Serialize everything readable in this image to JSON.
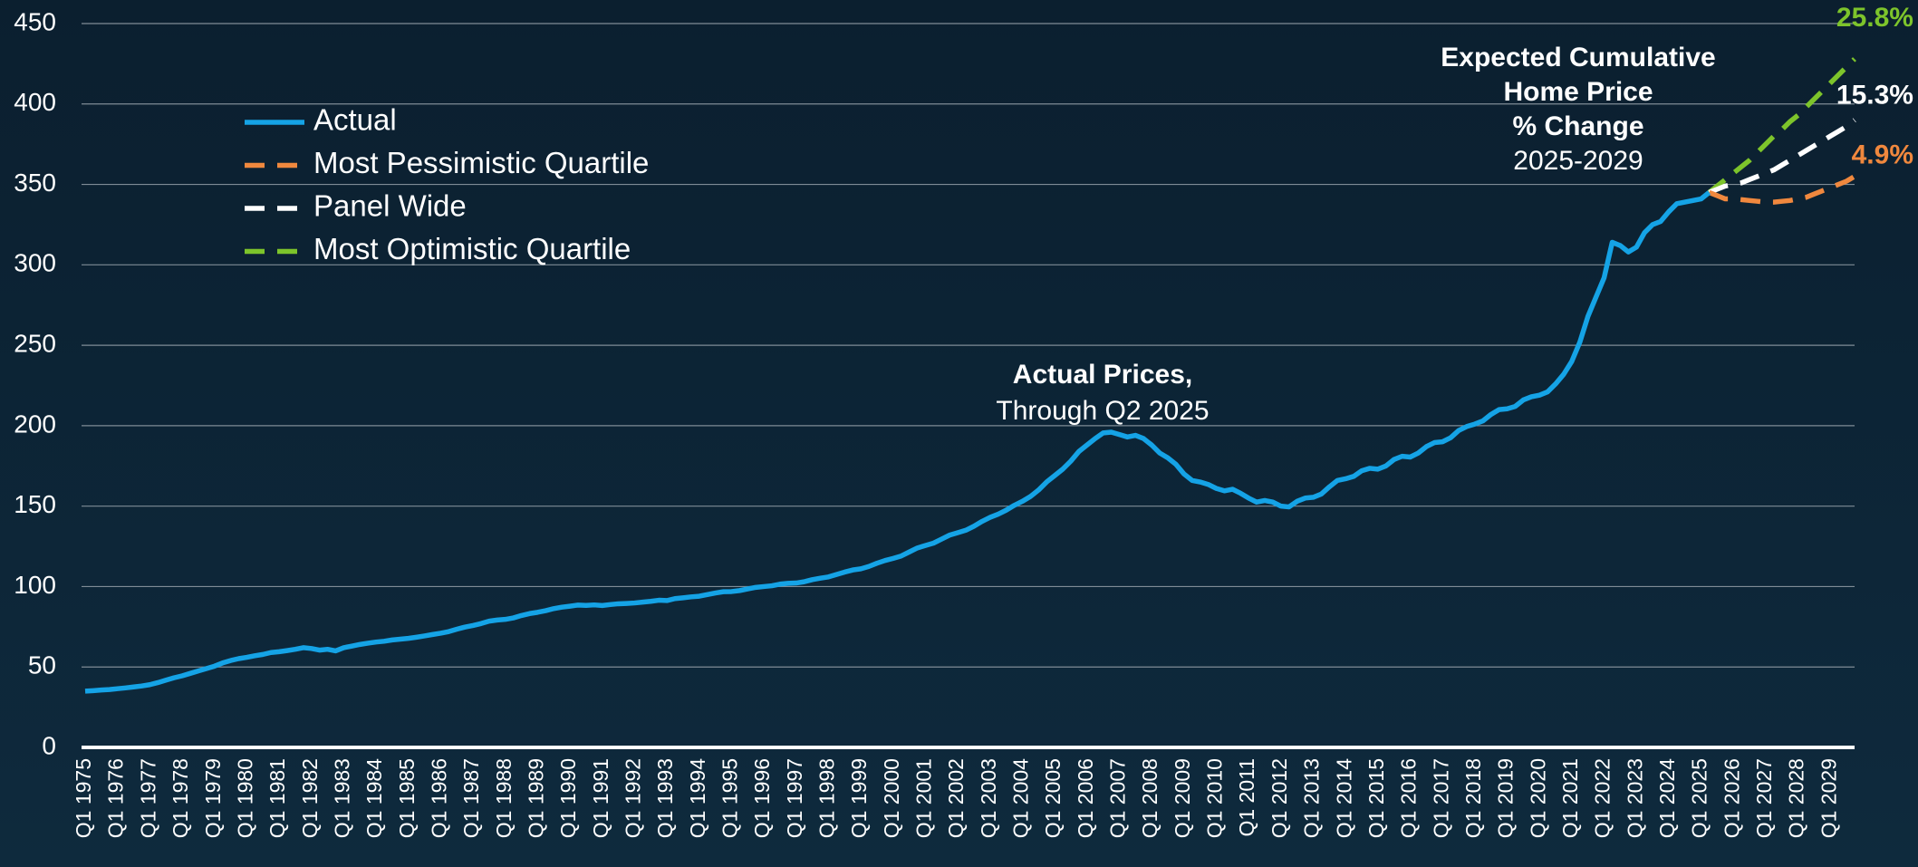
{
  "chart_data": {
    "type": "line",
    "ylim": [
      0,
      450
    ],
    "yticks": [
      0,
      50,
      100,
      150,
      200,
      250,
      300,
      350,
      400,
      450
    ],
    "grid": true,
    "legend": "upper left",
    "annotations": [
      "Expected Cumulative",
      "Home Price",
      "% Change",
      "2025-2029",
      "Actual Prices,",
      "Through Q2 2025"
    ],
    "categories": [
      "Q1 1975",
      null,
      null,
      null,
      "Q1 1976",
      null,
      null,
      null,
      "Q1 1977",
      null,
      null,
      null,
      "Q1 1978",
      null,
      null,
      null,
      "Q1 1979",
      null,
      null,
      null,
      "Q1 1980",
      null,
      null,
      null,
      "Q1 1981",
      null,
      null,
      null,
      "Q1 1982",
      null,
      null,
      null,
      "Q1 1983",
      null,
      null,
      null,
      "Q1 1984",
      null,
      null,
      null,
      "Q1 1985",
      null,
      null,
      null,
      "Q1 1986",
      null,
      null,
      null,
      "Q1 1987",
      null,
      null,
      null,
      "Q1 1988",
      null,
      null,
      null,
      "Q1 1989",
      null,
      null,
      null,
      "Q1 1990",
      null,
      null,
      null,
      "Q1 1991",
      null,
      null,
      null,
      "Q1 1992",
      null,
      null,
      null,
      "Q1 1993",
      null,
      null,
      null,
      "Q1 1994",
      null,
      null,
      null,
      "Q1 1995",
      null,
      null,
      null,
      "Q1 1996",
      null,
      null,
      null,
      "Q1 1997",
      null,
      null,
      null,
      "Q1 1998",
      null,
      null,
      null,
      "Q1 1999",
      null,
      null,
      null,
      "Q1 2000",
      null,
      null,
      null,
      "Q1 2001",
      null,
      null,
      null,
      "Q1 2002",
      null,
      null,
      null,
      "Q1 2003",
      null,
      null,
      null,
      "Q1 2004",
      null,
      null,
      null,
      "Q1 2005",
      null,
      null,
      null,
      "Q1 2006",
      null,
      null,
      null,
      "Q1 2007",
      null,
      null,
      null,
      "Q1 2008",
      null,
      null,
      null,
      "Q1 2009",
      null,
      null,
      null,
      "Q1 2010",
      null,
      null,
      null,
      "Q1 2011",
      null,
      null,
      null,
      "Q1 2012",
      null,
      null,
      null,
      "Q1 2013",
      null,
      null,
      null,
      "Q1 2014",
      null,
      null,
      null,
      "Q1 2015",
      null,
      null,
      null,
      "Q1 2016",
      null,
      null,
      null,
      "Q1 2017",
      null,
      null,
      null,
      "Q1 2018",
      null,
      null,
      null,
      "Q1 2019",
      null,
      null,
      null,
      "Q1 2020",
      null,
      null,
      null,
      "Q1 2021",
      null,
      null,
      null,
      "Q1 2022",
      null,
      null,
      null,
      "Q1 2023",
      null,
      null,
      null,
      "Q1 2024",
      null,
      null,
      null,
      "Q1 2025",
      null,
      null,
      null,
      "Q1 2026",
      null,
      null,
      null,
      "Q1 2027",
      null,
      null,
      null,
      "Q1 2028",
      null,
      null,
      null,
      "Q1 2029",
      null,
      null,
      null
    ],
    "series": [
      {
        "name": "Actual",
        "color": "#15a3e6",
        "dashed": false,
        "values": [
          35,
          35.3,
          35.7,
          36,
          36.5,
          37,
          37.6,
          38.2,
          39,
          40.3,
          41.8,
          43.3,
          44.5,
          46,
          47.5,
          49,
          50.5,
          52.5,
          54,
          55.2,
          56,
          57,
          57.8,
          59,
          59.5,
          60.2,
          61,
          62,
          61.5,
          60.5,
          61,
          60,
          62,
          63,
          64,
          64.8,
          65.5,
          66,
          66.8,
          67.3,
          67.8,
          68.5,
          69.3,
          70.2,
          71,
          72,
          73.5,
          74.8,
          75.8,
          77,
          78.5,
          79.2,
          79.6,
          80.5,
          82,
          83.2,
          84,
          85,
          86.3,
          87.2,
          87.8,
          88.5,
          88.3,
          88.6,
          88.2,
          88.8,
          89.3,
          89.5,
          89.8,
          90.3,
          90.8,
          91.5,
          91.3,
          92.5,
          93,
          93.6,
          94,
          95,
          96,
          96.8,
          96.9,
          97.5,
          98.5,
          99.5,
          100,
          100.5,
          101.5,
          102,
          102.2,
          103,
          104.3,
          105.2,
          106,
          107.5,
          109,
          110.3,
          111,
          112.5,
          114.5,
          116.2,
          117.5,
          119,
          121.5,
          124,
          125.5,
          127,
          129.5,
          132,
          133.5,
          135,
          137.5,
          140.5,
          143,
          145,
          147.5,
          150.5,
          153,
          156,
          160,
          165,
          169,
          173,
          178,
          184,
          188,
          192,
          195.5,
          196,
          194.5,
          193,
          194,
          192,
          188,
          183,
          180,
          176,
          170,
          166,
          165,
          163.5,
          161,
          159.5,
          160.5,
          158,
          155,
          152.5,
          153.5,
          152.5,
          150,
          149.5,
          153,
          155,
          155.5,
          157.5,
          162,
          166,
          167,
          168.5,
          172,
          173.5,
          173,
          175,
          179,
          181,
          180.5,
          183,
          187,
          189.5,
          190,
          192.5,
          197,
          199.5,
          201,
          203,
          207,
          210,
          210.5,
          212,
          216,
          218,
          219,
          221,
          226,
          232,
          240,
          252,
          268,
          280,
          292,
          314,
          312,
          308,
          311,
          320,
          325,
          327,
          333,
          338,
          339,
          340,
          341,
          345,
          null,
          null,
          null,
          null,
          null,
          null,
          null,
          null,
          null,
          null,
          null,
          null,
          null,
          null,
          null,
          null,
          null,
          null
        ]
      },
      {
        "name": "Most Pessimistic Quartile",
        "color": "#f0883e",
        "dashed": true,
        "label": "4.9%",
        "values": [
          null,
          null,
          null,
          null,
          null,
          null,
          null,
          null,
          null,
          null,
          null,
          null,
          null,
          null,
          null,
          null,
          null,
          null,
          null,
          null,
          null,
          null,
          null,
          null,
          null,
          null,
          null,
          null,
          null,
          null,
          null,
          null,
          null,
          null,
          null,
          null,
          null,
          null,
          null,
          null,
          null,
          null,
          null,
          null,
          null,
          null,
          null,
          null,
          null,
          null,
          null,
          null,
          null,
          null,
          null,
          null,
          null,
          null,
          null,
          null,
          null,
          null,
          null,
          null,
          null,
          null,
          null,
          null,
          null,
          null,
          null,
          null,
          null,
          null,
          null,
          null,
          null,
          null,
          null,
          null,
          null,
          null,
          null,
          null,
          null,
          null,
          null,
          null,
          null,
          null,
          null,
          null,
          null,
          null,
          null,
          null,
          null,
          null,
          null,
          null,
          null,
          null,
          null,
          null,
          null,
          null,
          null,
          null,
          null,
          null,
          null,
          null,
          null,
          null,
          null,
          null,
          null,
          null,
          null,
          null,
          null,
          null,
          null,
          null,
          null,
          null,
          null,
          null,
          null,
          null,
          null,
          null,
          null,
          null,
          null,
          null,
          null,
          null,
          null,
          null,
          null,
          null,
          null,
          null,
          null,
          null,
          null,
          null,
          null,
          null,
          null,
          null,
          null,
          null,
          null,
          null,
          null,
          null,
          null,
          null,
          null,
          null,
          null,
          null,
          null,
          null,
          null,
          null,
          null,
          null,
          null,
          null,
          null,
          null,
          null,
          null,
          null,
          null,
          null,
          null,
          null,
          null,
          null,
          null,
          null,
          null,
          null,
          null,
          null,
          null,
          null,
          null,
          null,
          null,
          null,
          null,
          null,
          null,
          null,
          null,
          null,
          345,
          343,
          341,
          341,
          340.5,
          340,
          339.5,
          339,
          339,
          339.5,
          340,
          341,
          342,
          344,
          346,
          348,
          350,
          352,
          355
        ]
      },
      {
        "name": "Panel Wide",
        "color": "#ffffff",
        "dashed": true,
        "label": "15.3%",
        "values": [
          null,
          null,
          null,
          null,
          null,
          null,
          null,
          null,
          null,
          null,
          null,
          null,
          null,
          null,
          null,
          null,
          null,
          null,
          null,
          null,
          null,
          null,
          null,
          null,
          null,
          null,
          null,
          null,
          null,
          null,
          null,
          null,
          null,
          null,
          null,
          null,
          null,
          null,
          null,
          null,
          null,
          null,
          null,
          null,
          null,
          null,
          null,
          null,
          null,
          null,
          null,
          null,
          null,
          null,
          null,
          null,
          null,
          null,
          null,
          null,
          null,
          null,
          null,
          null,
          null,
          null,
          null,
          null,
          null,
          null,
          null,
          null,
          null,
          null,
          null,
          null,
          null,
          null,
          null,
          null,
          null,
          null,
          null,
          null,
          null,
          null,
          null,
          null,
          null,
          null,
          null,
          null,
          null,
          null,
          null,
          null,
          null,
          null,
          null,
          null,
          null,
          null,
          null,
          null,
          null,
          null,
          null,
          null,
          null,
          null,
          null,
          null,
          null,
          null,
          null,
          null,
          null,
          null,
          null,
          null,
          null,
          null,
          null,
          null,
          null,
          null,
          null,
          null,
          null,
          null,
          null,
          null,
          null,
          null,
          null,
          null,
          null,
          null,
          null,
          null,
          null,
          null,
          null,
          null,
          null,
          null,
          null,
          null,
          null,
          null,
          null,
          null,
          null,
          null,
          null,
          null,
          null,
          null,
          null,
          null,
          null,
          null,
          null,
          null,
          null,
          null,
          null,
          null,
          null,
          null,
          null,
          null,
          null,
          null,
          null,
          null,
          null,
          null,
          null,
          null,
          null,
          null,
          null,
          null,
          null,
          null,
          null,
          null,
          null,
          null,
          null,
          null,
          null,
          null,
          null,
          null,
          null,
          null,
          null,
          null,
          null,
          345,
          347,
          349,
          350,
          351,
          353,
          355,
          357,
          359,
          362,
          365,
          368,
          371,
          374,
          377,
          380,
          383,
          386,
          390
        ]
      },
      {
        "name": "Most Optimistic Quartile",
        "color": "#7dc42b",
        "dashed": true,
        "label": "25.8%",
        "values": [
          null,
          null,
          null,
          null,
          null,
          null,
          null,
          null,
          null,
          null,
          null,
          null,
          null,
          null,
          null,
          null,
          null,
          null,
          null,
          null,
          null,
          null,
          null,
          null,
          null,
          null,
          null,
          null,
          null,
          null,
          null,
          null,
          null,
          null,
          null,
          null,
          null,
          null,
          null,
          null,
          null,
          null,
          null,
          null,
          null,
          null,
          null,
          null,
          null,
          null,
          null,
          null,
          null,
          null,
          null,
          null,
          null,
          null,
          null,
          null,
          null,
          null,
          null,
          null,
          null,
          null,
          null,
          null,
          null,
          null,
          null,
          null,
          null,
          null,
          null,
          null,
          null,
          null,
          null,
          null,
          null,
          null,
          null,
          null,
          null,
          null,
          null,
          null,
          null,
          null,
          null,
          null,
          null,
          null,
          null,
          null,
          null,
          null,
          null,
          null,
          null,
          null,
          null,
          null,
          null,
          null,
          null,
          null,
          null,
          null,
          null,
          null,
          null,
          null,
          null,
          null,
          null,
          null,
          null,
          null,
          null,
          null,
          null,
          null,
          null,
          null,
          null,
          null,
          null,
          null,
          null,
          null,
          null,
          null,
          null,
          null,
          null,
          null,
          null,
          null,
          null,
          null,
          null,
          null,
          null,
          null,
          null,
          null,
          null,
          null,
          null,
          null,
          null,
          null,
          null,
          null,
          null,
          null,
          null,
          null,
          null,
          null,
          null,
          null,
          null,
          null,
          null,
          null,
          null,
          null,
          null,
          null,
          null,
          null,
          null,
          null,
          null,
          null,
          null,
          null,
          null,
          null,
          null,
          null,
          null,
          null,
          null,
          null,
          null,
          null,
          null,
          null,
          null,
          null,
          null,
          null,
          null,
          null,
          null,
          null,
          null,
          345,
          349,
          353,
          357,
          361,
          365,
          370,
          375,
          380,
          384,
          389,
          393,
          398,
          403,
          408,
          413,
          418,
          423,
          428
        ]
      }
    ]
  }
}
